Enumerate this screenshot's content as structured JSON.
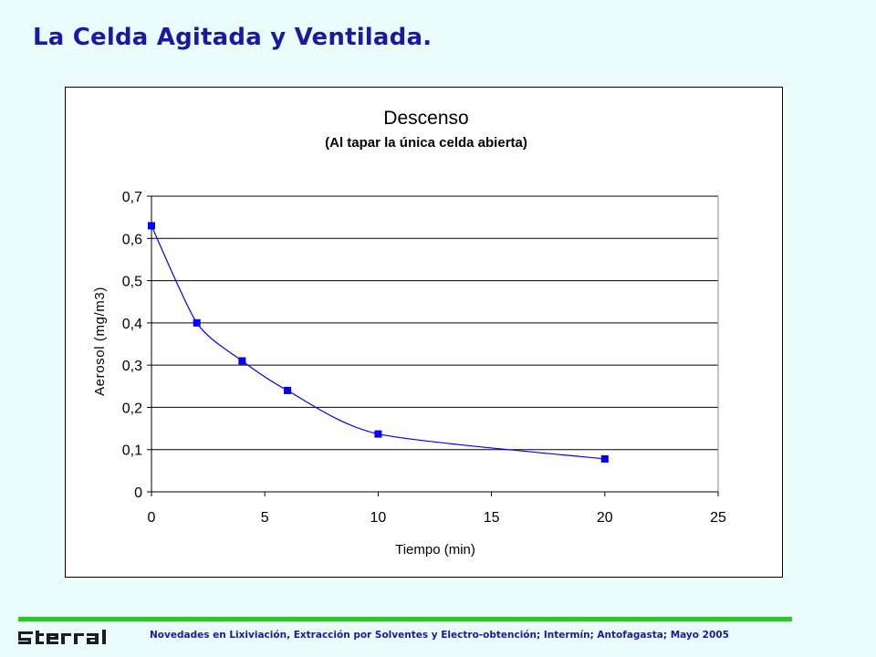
{
  "slide": {
    "title": "La Celda Agitada y Ventilada."
  },
  "footer": {
    "logo_text": "Terral",
    "text": "Novedades en Lixiviación, Extracción por Solventes y Electro-obtención; Intermín; Antofagasta; Mayo 2005",
    "rule_color": "#2ec42e",
    "text_color": "#1a1aa0"
  },
  "chart_data": {
    "type": "scatter",
    "title": "Descenso",
    "subtitle": "(Al tapar la única celda abierta)",
    "xlabel": "Tiempo (min)",
    "ylabel": "Aerosol (mg/m3)",
    "xlim": [
      0,
      25
    ],
    "ylim": [
      0,
      0.7
    ],
    "x_ticks": [
      "0",
      "5",
      "10",
      "15",
      "20",
      "25"
    ],
    "y_ticks": [
      "0",
      "0,1",
      "0,2",
      "0,3",
      "0,4",
      "0,5",
      "0,6",
      "0,7"
    ],
    "grid": "horizontal",
    "legend": "none",
    "series": [
      {
        "x": [
          0,
          2,
          4,
          6,
          10,
          20
        ],
        "y": [
          0.63,
          0.4,
          0.31,
          0.24,
          0.137,
          0.078
        ],
        "color": "#0000ff",
        "marker": "square",
        "line": "smooth"
      }
    ]
  }
}
